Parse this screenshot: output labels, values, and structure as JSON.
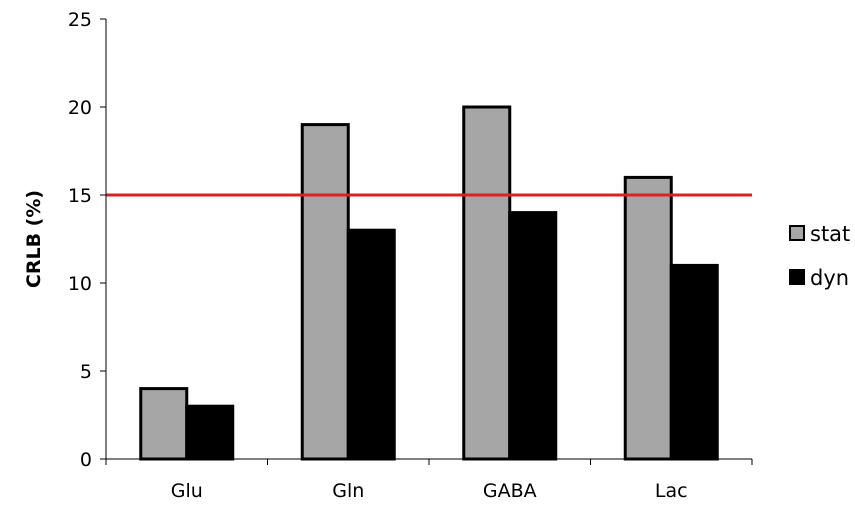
{
  "chart_data": {
    "type": "bar",
    "title": "",
    "xlabel": "",
    "ylabel": "CRLB (%)",
    "ylim": [
      0,
      25
    ],
    "yticks": [
      0,
      5,
      10,
      15,
      20,
      25
    ],
    "categories": [
      "Glu",
      "Gln",
      "GABA",
      "Lac"
    ],
    "series": [
      {
        "name": "stat",
        "values": [
          4,
          19,
          20,
          16
        ],
        "color": "#a6a6a6"
      },
      {
        "name": "dyn",
        "values": [
          3,
          13,
          14,
          11
        ],
        "color": "#000000"
      }
    ],
    "reference_line": {
      "y": 15,
      "color": "#e02020"
    },
    "grid": false,
    "legend_position": "right"
  }
}
